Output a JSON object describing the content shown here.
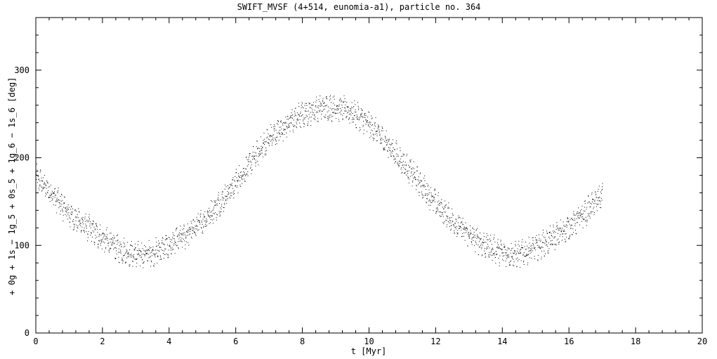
{
  "chart_data": {
    "type": "scatter",
    "title": "SWIFT_MVSF (4+514, eunomia-a1), particle no. 364",
    "xlabel": "t [Myr]",
    "ylabel": "+ 0g + 1s − 1g_5 + 0s_5 + 1g_6 − 1s_6 [deg]",
    "xlim": [
      0,
      20
    ],
    "ylim": [
      0,
      360
    ],
    "xticks": [
      0,
      2,
      4,
      6,
      8,
      10,
      12,
      14,
      16,
      18,
      20
    ],
    "xtick_labels": [
      "0",
      "2",
      "4",
      "6",
      "8",
      "10",
      "12",
      "14",
      "16",
      "18",
      "20"
    ],
    "yticks": [
      0,
      100,
      200,
      300
    ],
    "ytick_labels": [
      "0",
      "100",
      "200",
      "300"
    ],
    "grid": false,
    "marker_color": "#000000",
    "series": [
      {
        "x": [
          0.0,
          0.5,
          1.0,
          1.5,
          2.0,
          2.5,
          3.0,
          3.5,
          4.0,
          4.5,
          5.0,
          5.5,
          6.0,
          6.5,
          7.0,
          7.5,
          8.0,
          8.5,
          9.0,
          9.5,
          10.0,
          10.5,
          11.0,
          11.5,
          12.0,
          12.5,
          13.0,
          13.5,
          14.0,
          14.5,
          15.0,
          15.5,
          16.0,
          16.5,
          17.0
        ],
        "y": [
          178,
          158,
          136,
          122,
          108,
          96,
          89,
          92,
          100,
          112,
          128,
          148,
          172,
          198,
          222,
          238,
          250,
          257,
          258,
          252,
          238,
          218,
          195,
          172,
          148,
          128,
          112,
          100,
          92,
          90,
          98,
          108,
          122,
          138,
          158
        ],
        "scatter_deg": 22
      }
    ]
  }
}
